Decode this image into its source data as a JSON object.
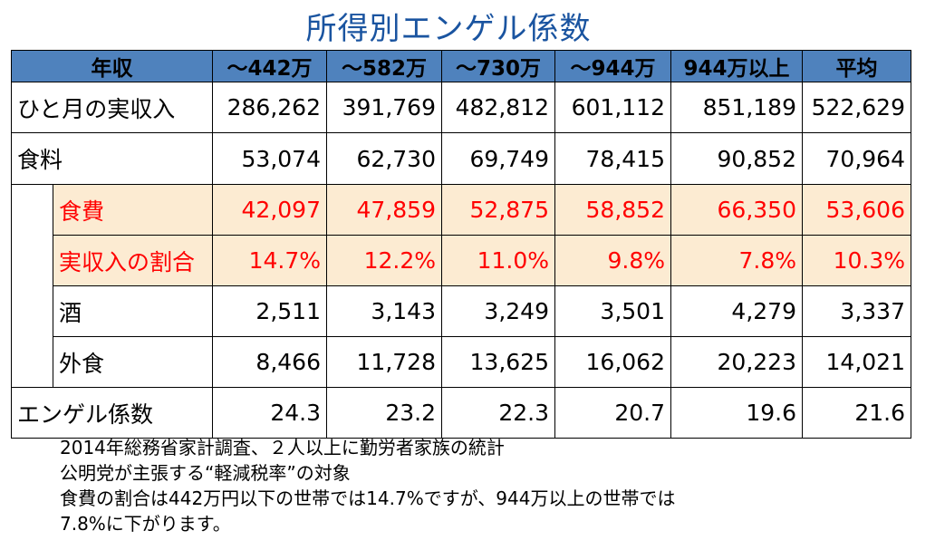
{
  "title": "所得別エンゲル係数",
  "header": [
    "年収",
    "～442万",
    "～582万",
    "～730万",
    "～944万",
    "944万以上",
    "平均"
  ],
  "rows": {
    "income": {
      "label": "ひと月の実収入",
      "values": [
        "286,262",
        "391,769",
        "482,812",
        "601,112",
        "851,189",
        "522,629"
      ]
    },
    "food": {
      "label": "食料",
      "values": [
        "53,074",
        "62,730",
        "69,749",
        "78,415",
        "90,852",
        "70,964"
      ]
    },
    "food_cost": {
      "label": "食費",
      "values": [
        "42,097",
        "47,859",
        "52,875",
        "58,852",
        "66,350",
        "53,606"
      ]
    },
    "ratio": {
      "label": "実収入の割合",
      "values": [
        "14.7%",
        "12.2%",
        "11.0%",
        "9.8%",
        "7.8%",
        "10.3%"
      ]
    },
    "alcohol": {
      "label": "酒",
      "values": [
        "2,511",
        "3,143",
        "3,249",
        "3,501",
        "4,279",
        "3,337"
      ]
    },
    "eating_out": {
      "label": "外食",
      "values": [
        "8,466",
        "11,728",
        "13,625",
        "16,062",
        "20,223",
        "14,021"
      ]
    },
    "engel": {
      "label": "エンゲル係数",
      "values": [
        "24.3",
        "23.2",
        "22.3",
        "20.7",
        "19.6",
        "21.6"
      ]
    }
  },
  "notes": [
    "2014年総務省家計調査、２人以上に勤労者家族の統計",
    "公明党が主張する“軽減税率”の対象",
    "食費の割合は442万円以下の世帯では14.7%ですが、944万以上の世帯では",
    "7.8%に下がります。"
  ],
  "colors": {
    "title": "#1a54a0",
    "header_bg": "#4f82bd",
    "highlight_bg": "#fcebd2",
    "highlight_text": "#ff0000"
  }
}
